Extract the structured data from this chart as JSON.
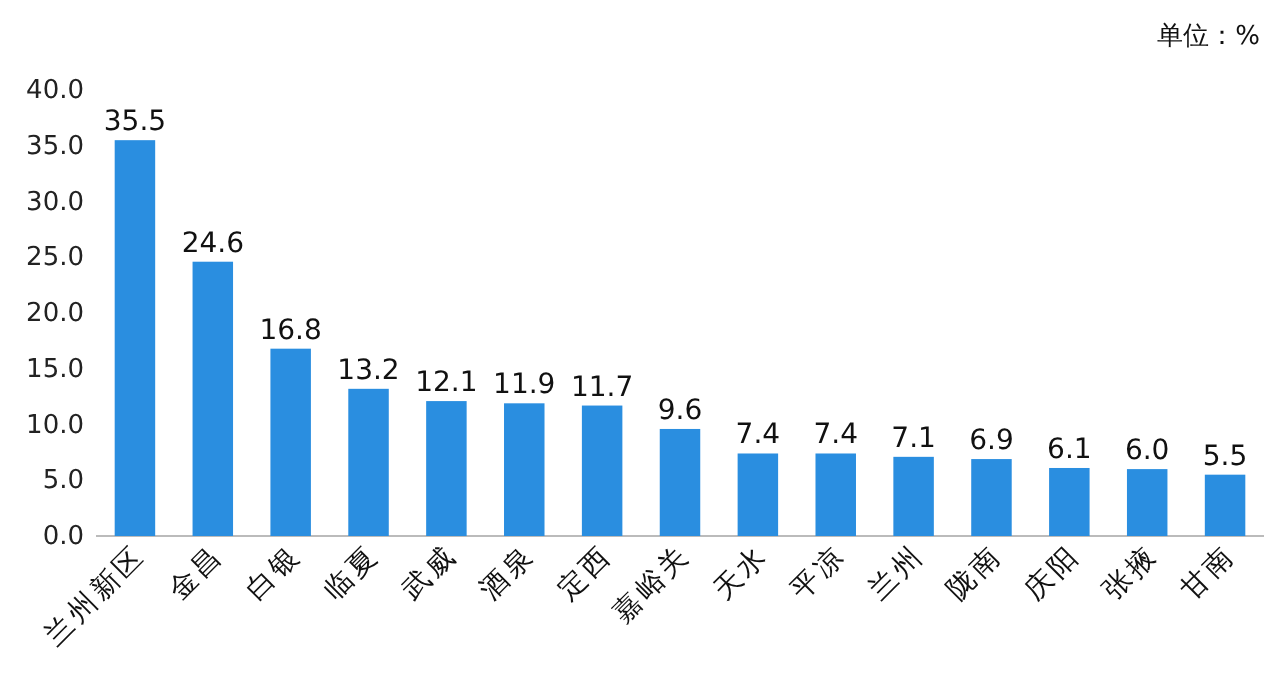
{
  "chart_data": {
    "type": "bar",
    "categories": [
      "兰州新区",
      "金昌",
      "白银",
      "临夏",
      "武威",
      "酒泉",
      "定西",
      "嘉峪关",
      "天水",
      "平凉",
      "兰州",
      "陇南",
      "庆阳",
      "张掖",
      "甘南"
    ],
    "values": [
      35.5,
      24.6,
      16.8,
      13.2,
      12.1,
      11.9,
      11.7,
      9.6,
      7.4,
      7.4,
      7.1,
      6.9,
      6.1,
      6.0,
      5.5
    ],
    "value_labels": [
      "35.5",
      "24.6",
      "16.8",
      "13.2",
      "12.1",
      "11.9",
      "11.7",
      "9.6",
      "7.4",
      "7.4",
      "7.1",
      "6.9",
      "6.1",
      "6.0",
      "5.5"
    ],
    "color": "#2a8ee0",
    "ylim": [
      0,
      40
    ],
    "yticks": [
      {
        "value": 0,
        "label": "0.0"
      },
      {
        "value": 5,
        "label": "5.0"
      },
      {
        "value": 10,
        "label": "10.0"
      },
      {
        "value": 15,
        "label": "15.0"
      },
      {
        "value": 20,
        "label": "20.0"
      },
      {
        "value": 25,
        "label": "25.0"
      },
      {
        "value": 30,
        "label": "30.0"
      },
      {
        "value": 35,
        "label": "35.0"
      },
      {
        "value": 40,
        "label": "40.0"
      }
    ],
    "annotations": [
      "单位：%"
    ]
  }
}
